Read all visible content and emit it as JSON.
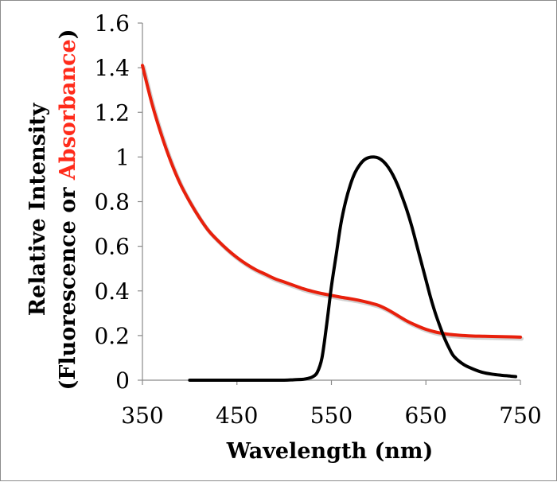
{
  "chart_data": {
    "type": "line",
    "title": "",
    "xlabel": "Wavelength (nm)",
    "ylabel_line1": "Relative Intensity",
    "ylabel_line2": {
      "prefix": "(Fluorescence or ",
      "highlight": "Absorbance",
      "suffix": ")",
      "highlight_color": "#ff2a1a"
    },
    "xlim": [
      350,
      750
    ],
    "ylim": [
      0,
      1.6
    ],
    "x_ticks": [
      350,
      450,
      550,
      650,
      750
    ],
    "y_ticks": [
      {
        "value": 0,
        "label": "0"
      },
      {
        "value": 0.2,
        "label": "0.2"
      },
      {
        "value": 0.4,
        "label": "0.4"
      },
      {
        "value": 0.6,
        "label": "0.6"
      },
      {
        "value": 0.8,
        "label": "0.8"
      },
      {
        "value": 1.0,
        "label": "1"
      },
      {
        "value": 1.2,
        "label": "1.2"
      },
      {
        "value": 1.4,
        "label": "1.4"
      },
      {
        "value": 1.6,
        "label": "1.6"
      }
    ],
    "grid": false,
    "legend": "none",
    "series": [
      {
        "name": "Absorbance",
        "color": "#e8200c",
        "x": [
          350,
          360,
          370,
          380,
          390,
          400,
          410,
          420,
          430,
          440,
          450,
          460,
          470,
          480,
          490,
          500,
          510,
          520,
          530,
          540,
          550,
          560,
          570,
          580,
          590,
          600,
          610,
          620,
          630,
          640,
          650,
          660,
          670,
          680,
          690,
          700,
          710,
          720,
          730,
          740,
          750
        ],
        "y": [
          1.41,
          1.24,
          1.1,
          0.98,
          0.88,
          0.8,
          0.73,
          0.67,
          0.625,
          0.585,
          0.55,
          0.52,
          0.495,
          0.475,
          0.455,
          0.44,
          0.425,
          0.41,
          0.398,
          0.388,
          0.38,
          0.372,
          0.365,
          0.357,
          0.347,
          0.335,
          0.315,
          0.29,
          0.265,
          0.245,
          0.228,
          0.216,
          0.208,
          0.203,
          0.2,
          0.198,
          0.197,
          0.196,
          0.195,
          0.194,
          0.193
        ]
      },
      {
        "name": "Fluorescence",
        "color": "#000000",
        "x": [
          400,
          420,
          440,
          460,
          480,
          500,
          510,
          520,
          525,
          530,
          535,
          540,
          545,
          550,
          555,
          560,
          565,
          570,
          575,
          580,
          585,
          590,
          595,
          600,
          605,
          610,
          615,
          620,
          625,
          630,
          635,
          640,
          645,
          650,
          655,
          660,
          665,
          670,
          675,
          680,
          690,
          700,
          710,
          720,
          730,
          740,
          745
        ],
        "y": [
          0,
          0,
          0,
          0,
          0,
          0,
          0.002,
          0.004,
          0.008,
          0.015,
          0.035,
          0.1,
          0.25,
          0.42,
          0.56,
          0.7,
          0.8,
          0.875,
          0.93,
          0.965,
          0.988,
          0.998,
          1.0,
          0.995,
          0.98,
          0.955,
          0.92,
          0.875,
          0.82,
          0.76,
          0.69,
          0.61,
          0.53,
          0.45,
          0.37,
          0.3,
          0.24,
          0.185,
          0.14,
          0.105,
          0.07,
          0.05,
          0.035,
          0.027,
          0.022,
          0.018,
          0.016
        ]
      }
    ]
  }
}
